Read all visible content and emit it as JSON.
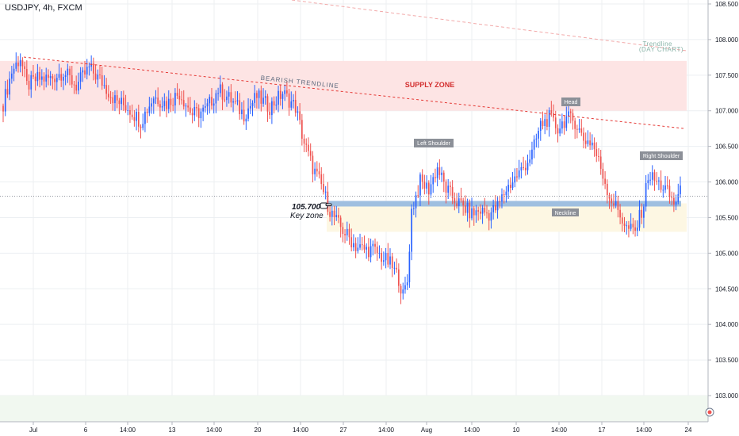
{
  "header": {
    "symbol_label": "USDJPY, 4h, FXCM"
  },
  "colors": {
    "up": "#2962ff",
    "down": "#ef5350",
    "grid": "#eceff2",
    "supply": "#fde4e4",
    "keyzone": "#fdf7e3",
    "neckline": "#9fbfe0",
    "trendline": "#e53935"
  },
  "annotations": {
    "supply_zone": "SUPPLY ZONE",
    "bearish_trendline": "BEARISH TRENDLINE",
    "trendline_day_1": "Trendline",
    "trendline_day_2": "(DAY CHART)",
    "head": "Head",
    "left_shoulder": "Left Shoulder",
    "right_shoulder": "Right Shoulder",
    "neckline": "Neckline",
    "key_value": "105.700",
    "key_zone": "Key zone"
  },
  "chart_data": {
    "type": "candlestick",
    "title": "USDJPY, 4h, FXCM",
    "ylim": [
      102.8,
      108.6
    ],
    "y_ticks": [
      "108.500",
      "108.000",
      "107.500",
      "107.000",
      "106.500",
      "106.000",
      "105.500",
      "105.000",
      "104.500",
      "104.000",
      "103.500",
      "103.000"
    ],
    "x_ticks": [
      "Jul",
      "6",
      "14:00",
      "13",
      "14:00",
      "20",
      "14:00",
      "27",
      "14:00",
      "Aug",
      "14:00",
      "10",
      "14:00",
      "17",
      "14:00",
      "24"
    ],
    "series_close_anchors": [
      [
        0,
        107.1
      ],
      [
        4,
        107.55
      ],
      [
        8,
        107.75
      ],
      [
        11,
        107.35
      ],
      [
        16,
        107.45
      ],
      [
        22,
        107.45
      ],
      [
        28,
        107.55
      ],
      [
        34,
        107.35
      ],
      [
        40,
        107.6
      ],
      [
        46,
        107.4
      ],
      [
        52,
        107.15
      ],
      [
        58,
        107.05
      ],
      [
        64,
        106.85
      ],
      [
        70,
        107.2
      ],
      [
        76,
        107.1
      ],
      [
        82,
        107.25
      ],
      [
        88,
        106.95
      ],
      [
        94,
        107.0
      ],
      [
        100,
        107.3
      ],
      [
        106,
        107.15
      ],
      [
        112,
        106.95
      ],
      [
        118,
        107.2
      ],
      [
        124,
        107.05
      ],
      [
        130,
        107.25
      ],
      [
        136,
        107.05
      ],
      [
        140,
        106.55
      ],
      [
        144,
        106.2
      ],
      [
        148,
        105.95
      ],
      [
        152,
        105.6
      ],
      [
        156,
        105.4
      ],
      [
        160,
        105.25
      ],
      [
        164,
        105.1
      ],
      [
        168,
        105.05
      ],
      [
        172,
        105.05
      ],
      [
        176,
        104.95
      ],
      [
        180,
        104.85
      ],
      [
        184,
        104.65
      ],
      [
        186,
        104.4
      ],
      [
        188,
        104.6
      ],
      [
        190,
        105.6
      ],
      [
        194,
        106.0
      ],
      [
        198,
        105.9
      ],
      [
        202,
        106.2
      ],
      [
        206,
        105.9
      ],
      [
        210,
        105.75
      ],
      [
        214,
        105.65
      ],
      [
        218,
        105.55
      ],
      [
        222,
        105.6
      ],
      [
        226,
        105.55
      ],
      [
        230,
        105.65
      ],
      [
        234,
        105.9
      ],
      [
        238,
        106.05
      ],
      [
        242,
        106.2
      ],
      [
        246,
        106.4
      ],
      [
        250,
        106.8
      ],
      [
        254,
        106.9
      ],
      [
        258,
        106.75
      ],
      [
        262,
        106.9
      ],
      [
        266,
        106.85
      ],
      [
        270,
        106.6
      ],
      [
        274,
        106.55
      ],
      [
        278,
        106.2
      ],
      [
        282,
        105.8
      ],
      [
        286,
        105.6
      ],
      [
        290,
        105.35
      ],
      [
        294,
        105.3
      ],
      [
        298,
        105.7
      ],
      [
        300,
        106.1
      ],
      [
        304,
        106.0
      ],
      [
        308,
        105.9
      ],
      [
        312,
        105.7
      ],
      [
        315,
        105.85
      ]
    ],
    "levels": {
      "key_zone": 105.7,
      "supply_zone": [
        107.0,
        107.7
      ],
      "key_zone_band": [
        105.3,
        105.7
      ]
    }
  }
}
